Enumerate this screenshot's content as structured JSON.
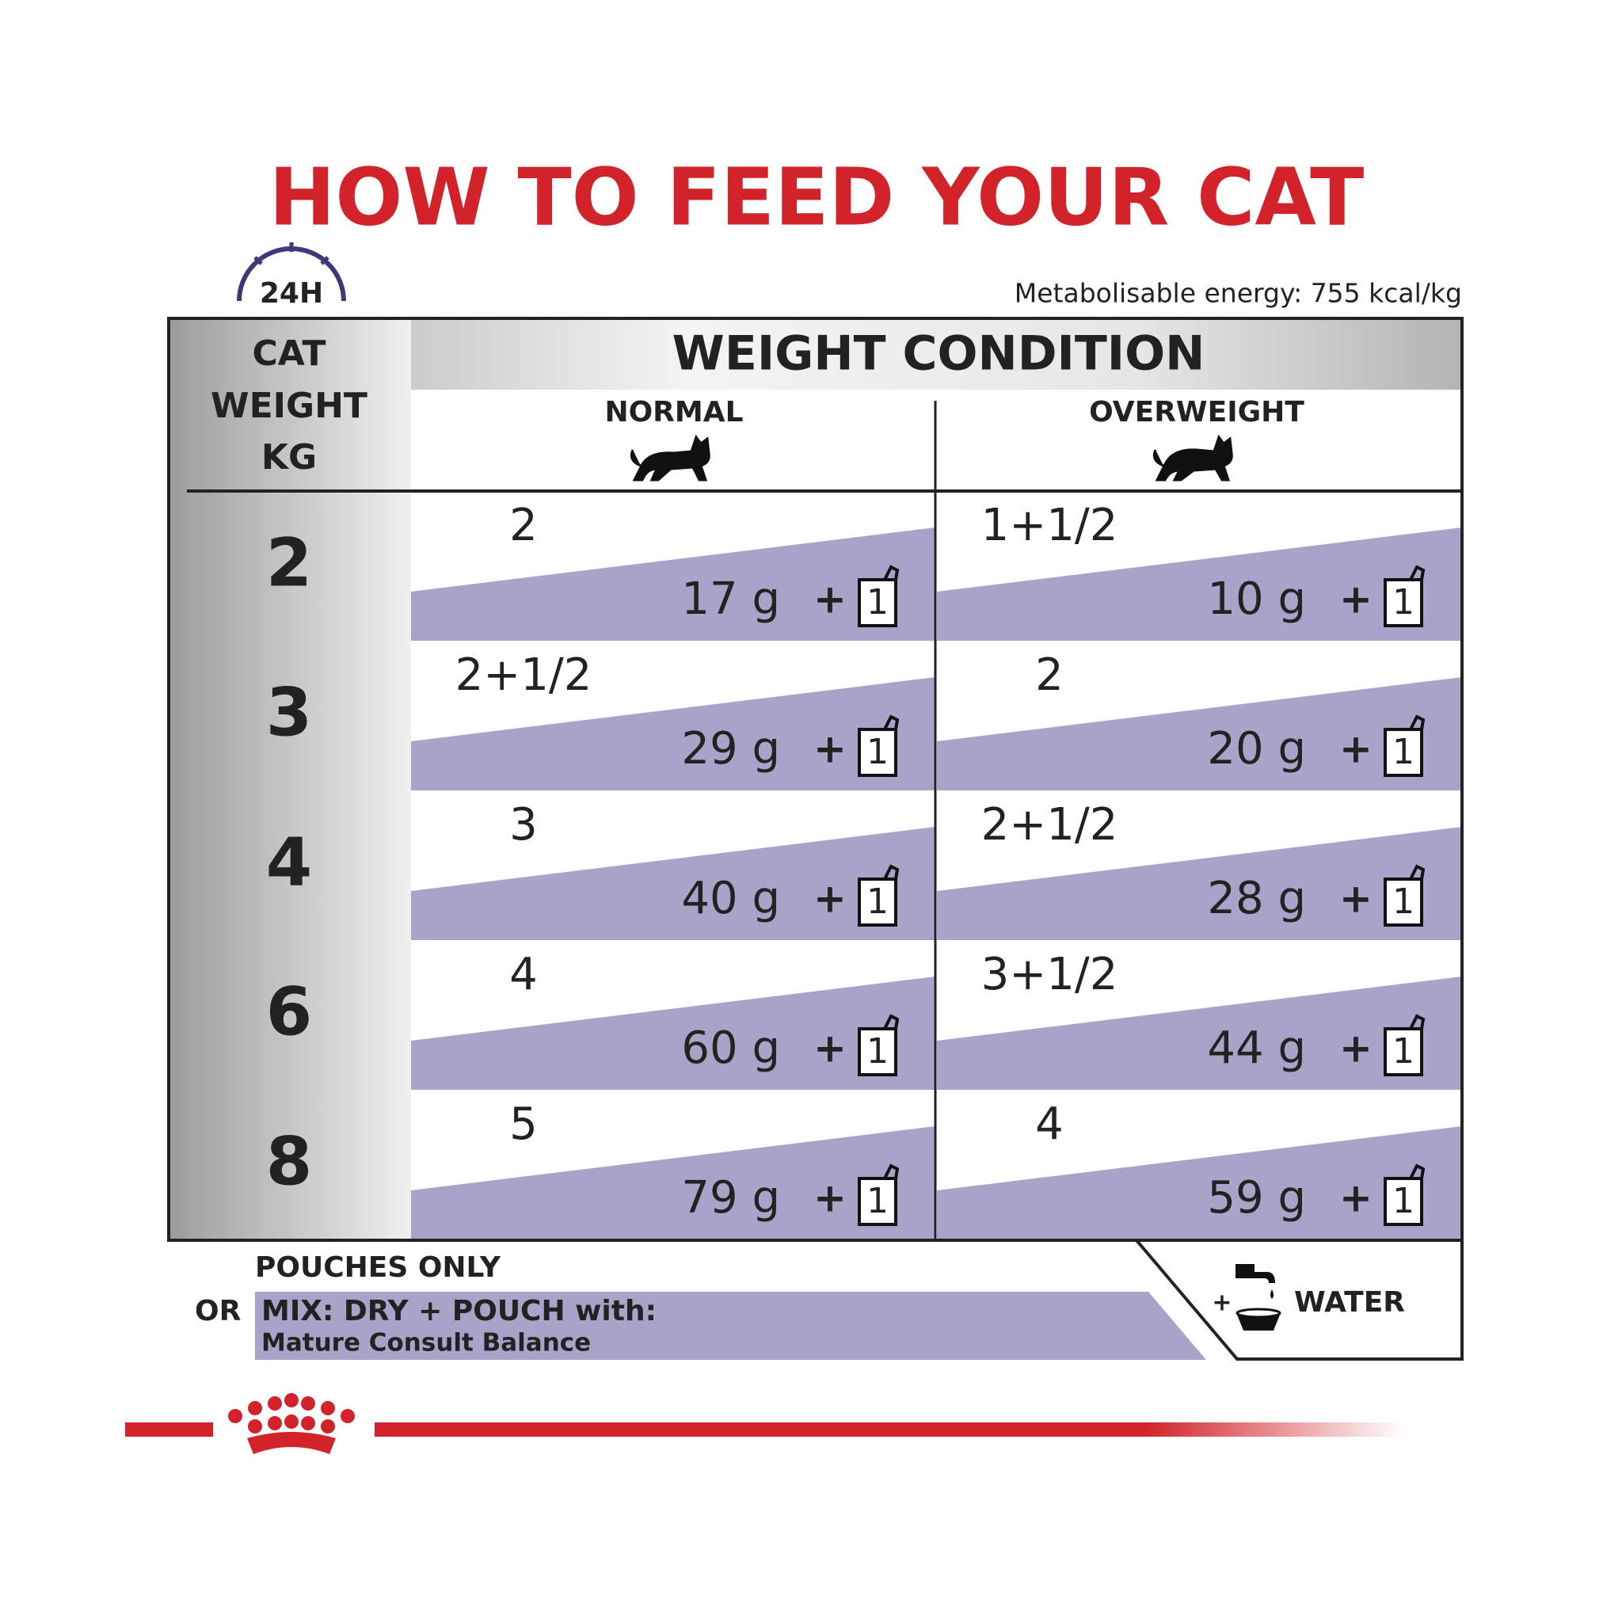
{
  "title": "HOW TO FEED YOUR CAT",
  "badge": "24H",
  "energy": "Metabolisable energy: 755 kcal/kg",
  "table": {
    "weight_header": [
      "CAT",
      "WEIGHT",
      "KG"
    ],
    "condition_header": "WEIGHT CONDITION",
    "columns": [
      "NORMAL",
      "OVERWEIGHT"
    ],
    "plus": "+",
    "rows": [
      {
        "weight": 2,
        "cells": [
          {
            "dry": "2",
            "grams": "17 g",
            "pouch": 1
          },
          {
            "dry": "1+1/2",
            "grams": "10 g",
            "pouch": 1
          }
        ]
      },
      {
        "weight": 3,
        "cells": [
          {
            "dry": "2+1/2",
            "grams": "29 g",
            "pouch": 1
          },
          {
            "dry": "2",
            "grams": "20 g",
            "pouch": 1
          }
        ]
      },
      {
        "weight": 4,
        "cells": [
          {
            "dry": "3",
            "grams": "40 g",
            "pouch": 1
          },
          {
            "dry": "2+1/2",
            "grams": "28 g",
            "pouch": 1
          }
        ]
      },
      {
        "weight": 6,
        "cells": [
          {
            "dry": "4",
            "grams": "60 g",
            "pouch": 1
          },
          {
            "dry": "3+1/2",
            "grams": "44 g",
            "pouch": 1
          }
        ]
      },
      {
        "weight": 8,
        "cells": [
          {
            "dry": "5",
            "grams": "79 g",
            "pouch": 1
          },
          {
            "dry": "4",
            "grams": "59 g",
            "pouch": 1
          }
        ]
      }
    ]
  },
  "footer": {
    "pouches_only": "POUCHES ONLY",
    "or": "OR",
    "mix": "MIX: DRY + POUCH with:",
    "product": "Mature Consult Balance",
    "water": "WATER"
  }
}
